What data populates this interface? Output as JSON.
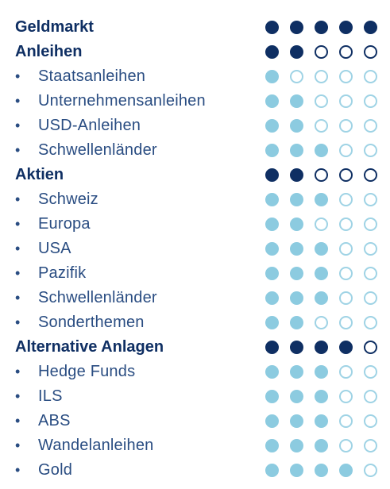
{
  "colors": {
    "category_text": "#0f2f63",
    "item_text": "#2a4d82",
    "category_dot": "#0f2f63",
    "item_dot": "#8ccbe0",
    "item_dot_outline": "#9fd3e5"
  },
  "max_rating": 5,
  "bullet": "•",
  "rows": [
    {
      "type": "category",
      "label": "Geldmarkt",
      "rating": 5
    },
    {
      "type": "category",
      "label": "Anleihen",
      "rating": 2
    },
    {
      "type": "item",
      "label": "Staatsanleihen",
      "rating": 1
    },
    {
      "type": "item",
      "label": "Unternehmensanleihen",
      "rating": 2
    },
    {
      "type": "item",
      "label": "USD-Anleihen",
      "rating": 2
    },
    {
      "type": "item",
      "label": "Schwellenländer",
      "rating": 3
    },
    {
      "type": "category",
      "label": "Aktien",
      "rating": 2
    },
    {
      "type": "item",
      "label": "Schweiz",
      "rating": 3
    },
    {
      "type": "item",
      "label": "Europa",
      "rating": 2
    },
    {
      "type": "item",
      "label": "USA",
      "rating": 3
    },
    {
      "type": "item",
      "label": "Pazifik",
      "rating": 3
    },
    {
      "type": "item",
      "label": "Schwellenländer",
      "rating": 3
    },
    {
      "type": "item",
      "label": "Sonderthemen",
      "rating": 2
    },
    {
      "type": "category",
      "label": "Alternative Anlagen",
      "rating": 4
    },
    {
      "type": "item",
      "label": "Hedge Funds",
      "rating": 3
    },
    {
      "type": "item",
      "label": "ILS",
      "rating": 3
    },
    {
      "type": "item",
      "label": "ABS",
      "rating": 3
    },
    {
      "type": "item",
      "label": "Wandelanleihen",
      "rating": 3
    },
    {
      "type": "item",
      "label": "Gold",
      "rating": 4
    }
  ]
}
